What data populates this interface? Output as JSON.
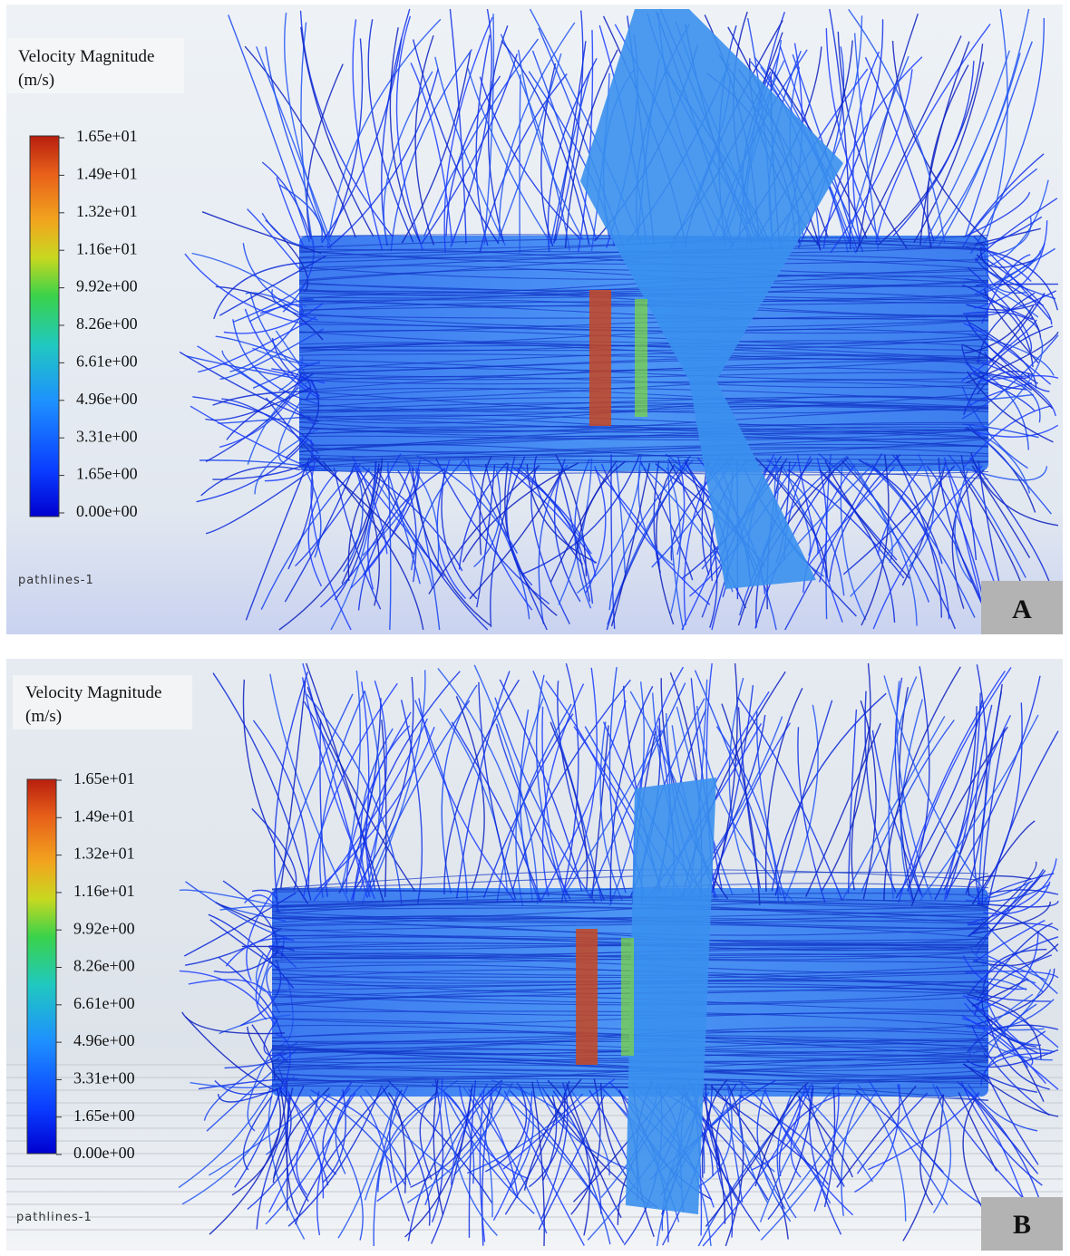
{
  "panels": [
    {
      "legend_title": "Velocity Magnitude",
      "legend_unit": "(m/s)",
      "colorbar_labels": [
        "1.65e+01",
        "1.49e+01",
        "1.32e+01",
        "1.16e+01",
        "9.92e+00",
        "8.26e+00",
        "6.61e+00",
        "4.96e+00",
        "3.31e+00",
        "1.65e+00",
        "0.00e+00"
      ],
      "object_name": "pathlines-1",
      "panel_label": "A"
    },
    {
      "legend_title": "Velocity Magnitude",
      "legend_unit": "(m/s)",
      "colorbar_labels": [
        "1.65e+01",
        "1.49e+01",
        "1.32e+01",
        "1.16e+01",
        "9.92e+00",
        "8.26e+00",
        "6.61e+00",
        "4.96e+00",
        "3.31e+00",
        "1.65e+00",
        "0.00e+00"
      ],
      "object_name": "pathlines-1",
      "panel_label": "B"
    }
  ]
}
